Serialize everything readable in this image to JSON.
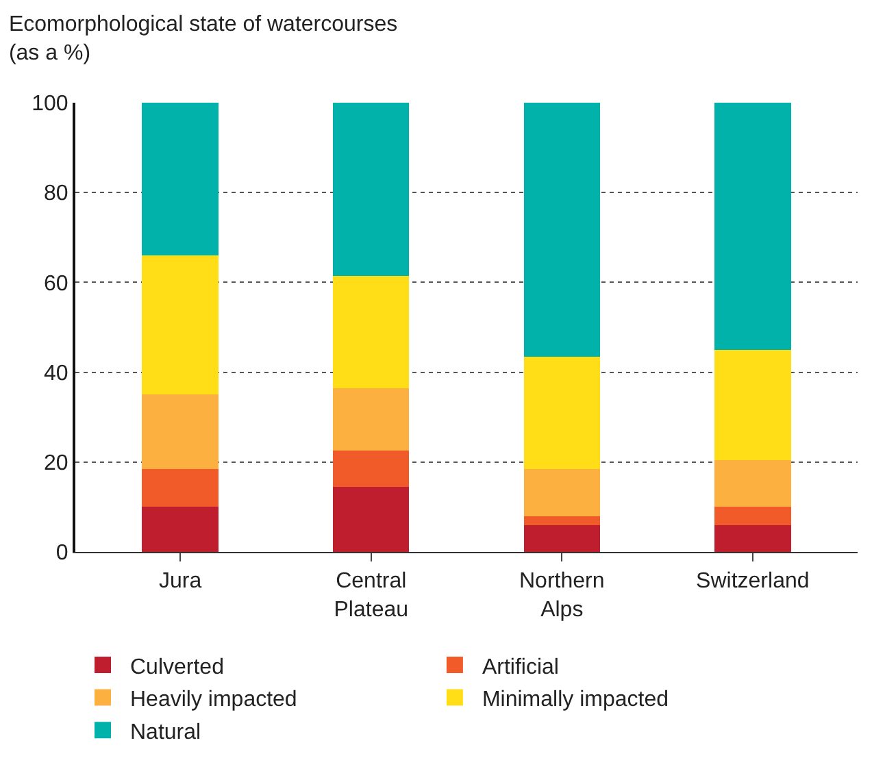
{
  "chart_data": {
    "type": "bar",
    "title": "Ecomorphological state of watercourses",
    "subtitle": "(as a %)",
    "stacked": true,
    "categories": [
      "Jura",
      "Central Plateau",
      "Northern Alps",
      "Switzerland"
    ],
    "series": [
      {
        "name": "Culverted",
        "color": "#be1e2d",
        "values": [
          10,
          14.5,
          6,
          6
        ]
      },
      {
        "name": "Artificial",
        "color": "#f15a29",
        "values": [
          8.5,
          8,
          2,
          4
        ]
      },
      {
        "name": "Heavily impacted",
        "color": "#fbb040",
        "values": [
          16.5,
          14,
          10.5,
          10.5
        ]
      },
      {
        "name": "Minimally impacted",
        "color": "#ffde17",
        "values": [
          31,
          25,
          25,
          24.5
        ]
      },
      {
        "name": "Natural",
        "color": "#00b2a9",
        "values": [
          34,
          38.5,
          56.5,
          55
        ]
      }
    ],
    "ylim": [
      0,
      100
    ],
    "yticks": [
      0,
      20,
      40,
      60,
      80,
      100
    ],
    "grid": "y",
    "legend": "bottom"
  }
}
